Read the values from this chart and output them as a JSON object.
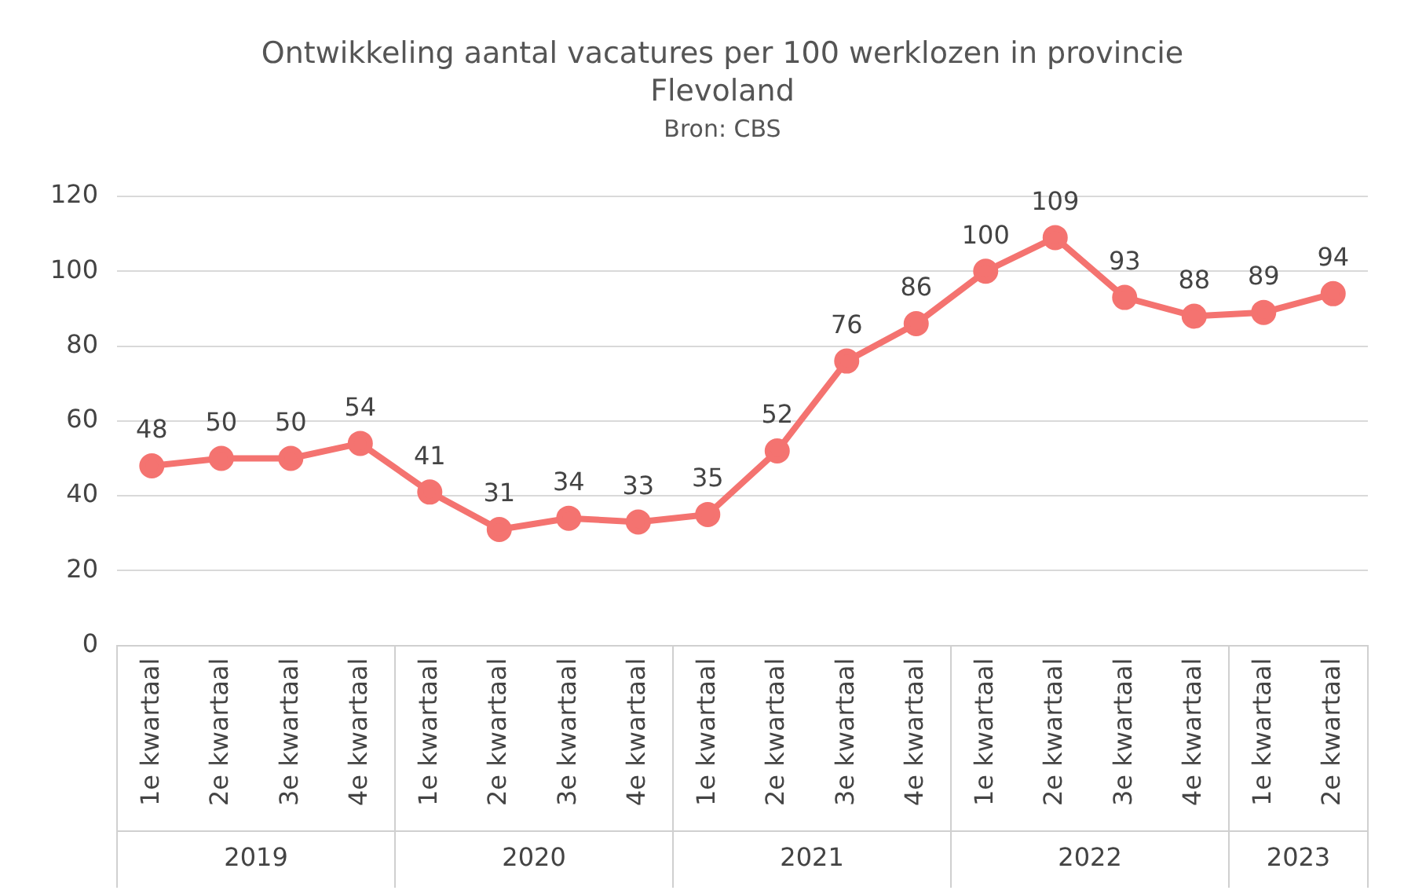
{
  "chart_data": {
    "type": "line",
    "title": "Ontwikkeling aantal vacatures per 100 werklozen in provincie Flevoland",
    "subtitle": "Bron: CBS",
    "categories": [
      "1e kwartaal",
      "2e kwartaal",
      "3e kwartaal",
      "4e kwartaal",
      "1e kwartaal",
      "2e kwartaal",
      "3e kwartaal",
      "4e kwartaal",
      "1e kwartaal",
      "2e kwartaal",
      "3e kwartaal",
      "4e kwartaal",
      "1e kwartaal",
      "2e kwartaal",
      "3e kwartaal",
      "4e kwartaal",
      "1e kwartaal",
      "2e kwartaal"
    ],
    "series": [
      {
        "color": "#f47370",
        "values": [
          48,
          50,
          50,
          54,
          41,
          31,
          34,
          33,
          35,
          52,
          76,
          86,
          100,
          109,
          93,
          88,
          89,
          94
        ]
      }
    ],
    "annotations": [
      "2019",
      "2020",
      "2021",
      "2022",
      "2023"
    ],
    "ylim": [
      0,
      120
    ],
    "yticks": [
      0,
      20,
      40,
      60,
      80,
      100,
      120
    ],
    "grid": "y",
    "data_labels": true,
    "marker": "circle",
    "line_style": "solid"
  }
}
